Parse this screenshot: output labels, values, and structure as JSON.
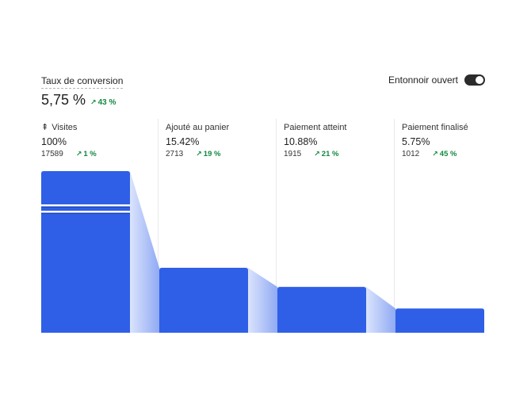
{
  "conversion": {
    "label": "Taux de conversion",
    "value": "5,75 %",
    "trend": "43 %"
  },
  "toggle": {
    "label": "Entonnoir ouvert",
    "on": true
  },
  "steps": [
    {
      "name": "Visites",
      "percent": "100%",
      "count": "17589",
      "trend": "1 %",
      "icon": "visits-icon"
    },
    {
      "name": "Ajouté au panier",
      "percent": "15.42%",
      "count": "2713",
      "trend": "19 %"
    },
    {
      "name": "Paiement atteint",
      "percent": "10.88%",
      "count": "1915",
      "trend": "21 %"
    },
    {
      "name": "Paiement finalisé",
      "percent": "5.75%",
      "count": "1012",
      "trend": "45 %"
    }
  ],
  "colors": {
    "bar": "#2f5fe6",
    "connector_light": "#dbe4fd",
    "connector_dark": "#90aaf3",
    "trend_up": "#12893f"
  }
}
